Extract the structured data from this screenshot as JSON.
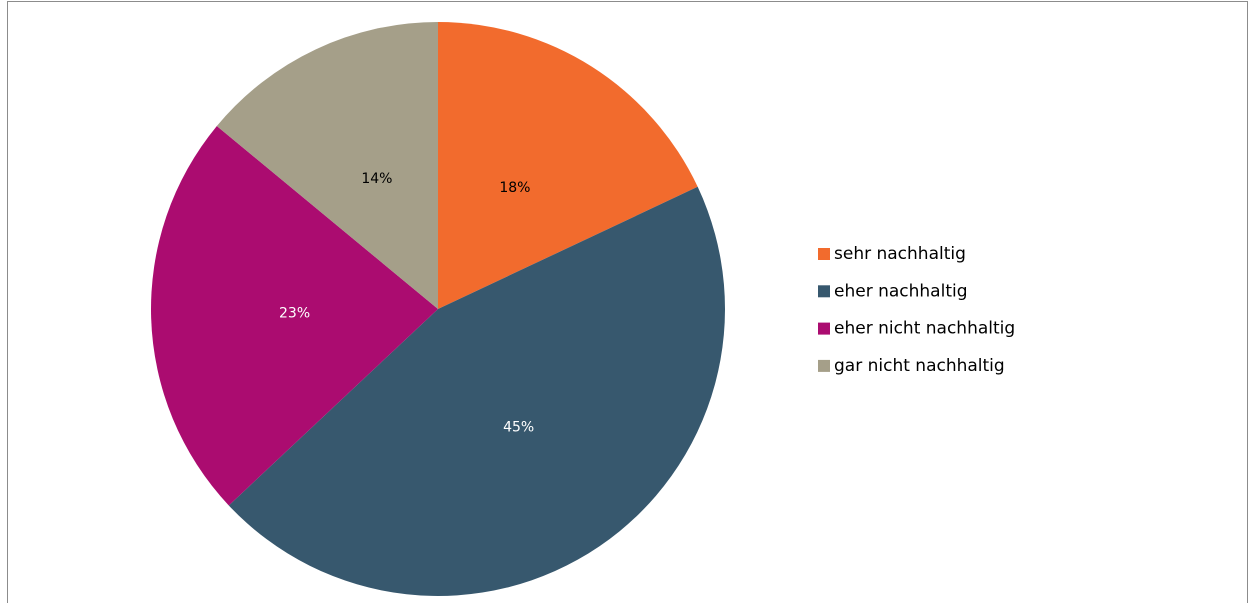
{
  "chart_data": {
    "type": "pie",
    "categories": [
      "sehr nachhaltig",
      "eher nachhaltig",
      "eher nicht nachhaltig",
      "gar nicht nachhaltig"
    ],
    "values": [
      18,
      45,
      23,
      14
    ],
    "value_labels": [
      "18%",
      "45%",
      "23%",
      "14%"
    ],
    "colors": [
      "#f26b2d",
      "#37586e",
      "#ab0c70",
      "#a59f89"
    ],
    "label_colors": [
      "#000000",
      "#ffffff",
      "#ffffff",
      "#000000"
    ],
    "legend": "right"
  }
}
